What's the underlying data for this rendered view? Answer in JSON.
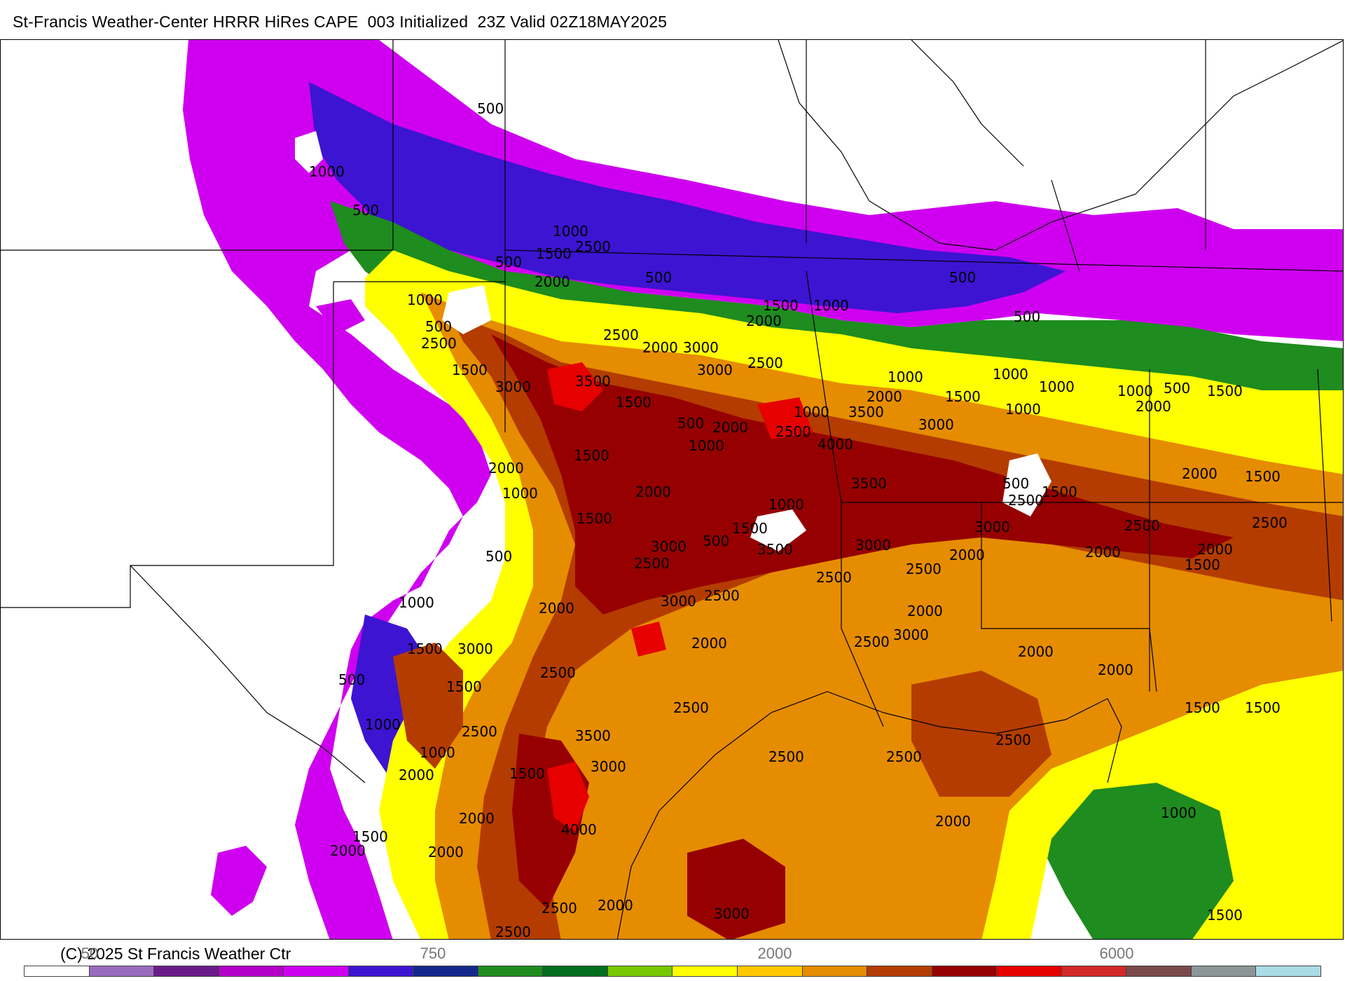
{
  "title": "St-Francis Weather-Center HRRR HiRes CAPE  003 Initialized  23Z Valid 02Z18MAY2025",
  "copyright": "(C) 2025 St Francis Weather Ctr",
  "colorbar": {
    "ticks": [
      "50",
      "750",
      "2000",
      "6000"
    ],
    "colors": [
      "#ffffff",
      "#9b6bbf",
      "#6a1b8a",
      "#b400c8",
      "#cf00f0",
      "#3c14d2",
      "#14288c",
      "#1e8c1e",
      "#006e1e",
      "#78c800",
      "#ffff00",
      "#ffc800",
      "#e68c00",
      "#b43c00",
      "#960000",
      "#e60000",
      "#d22828",
      "#7a4a4a",
      "#8c9696",
      "#aadce6"
    ]
  },
  "map": {
    "type": "filled-contour",
    "field": "CAPE",
    "model": "HRRR HiRes",
    "forecast_hour": "003",
    "initialized": "23Z",
    "valid": "02Z18MAY2025",
    "contour_labels": [
      "500",
      "1000",
      "1500",
      "2000",
      "2500",
      "3000",
      "3500",
      "4000"
    ]
  }
}
